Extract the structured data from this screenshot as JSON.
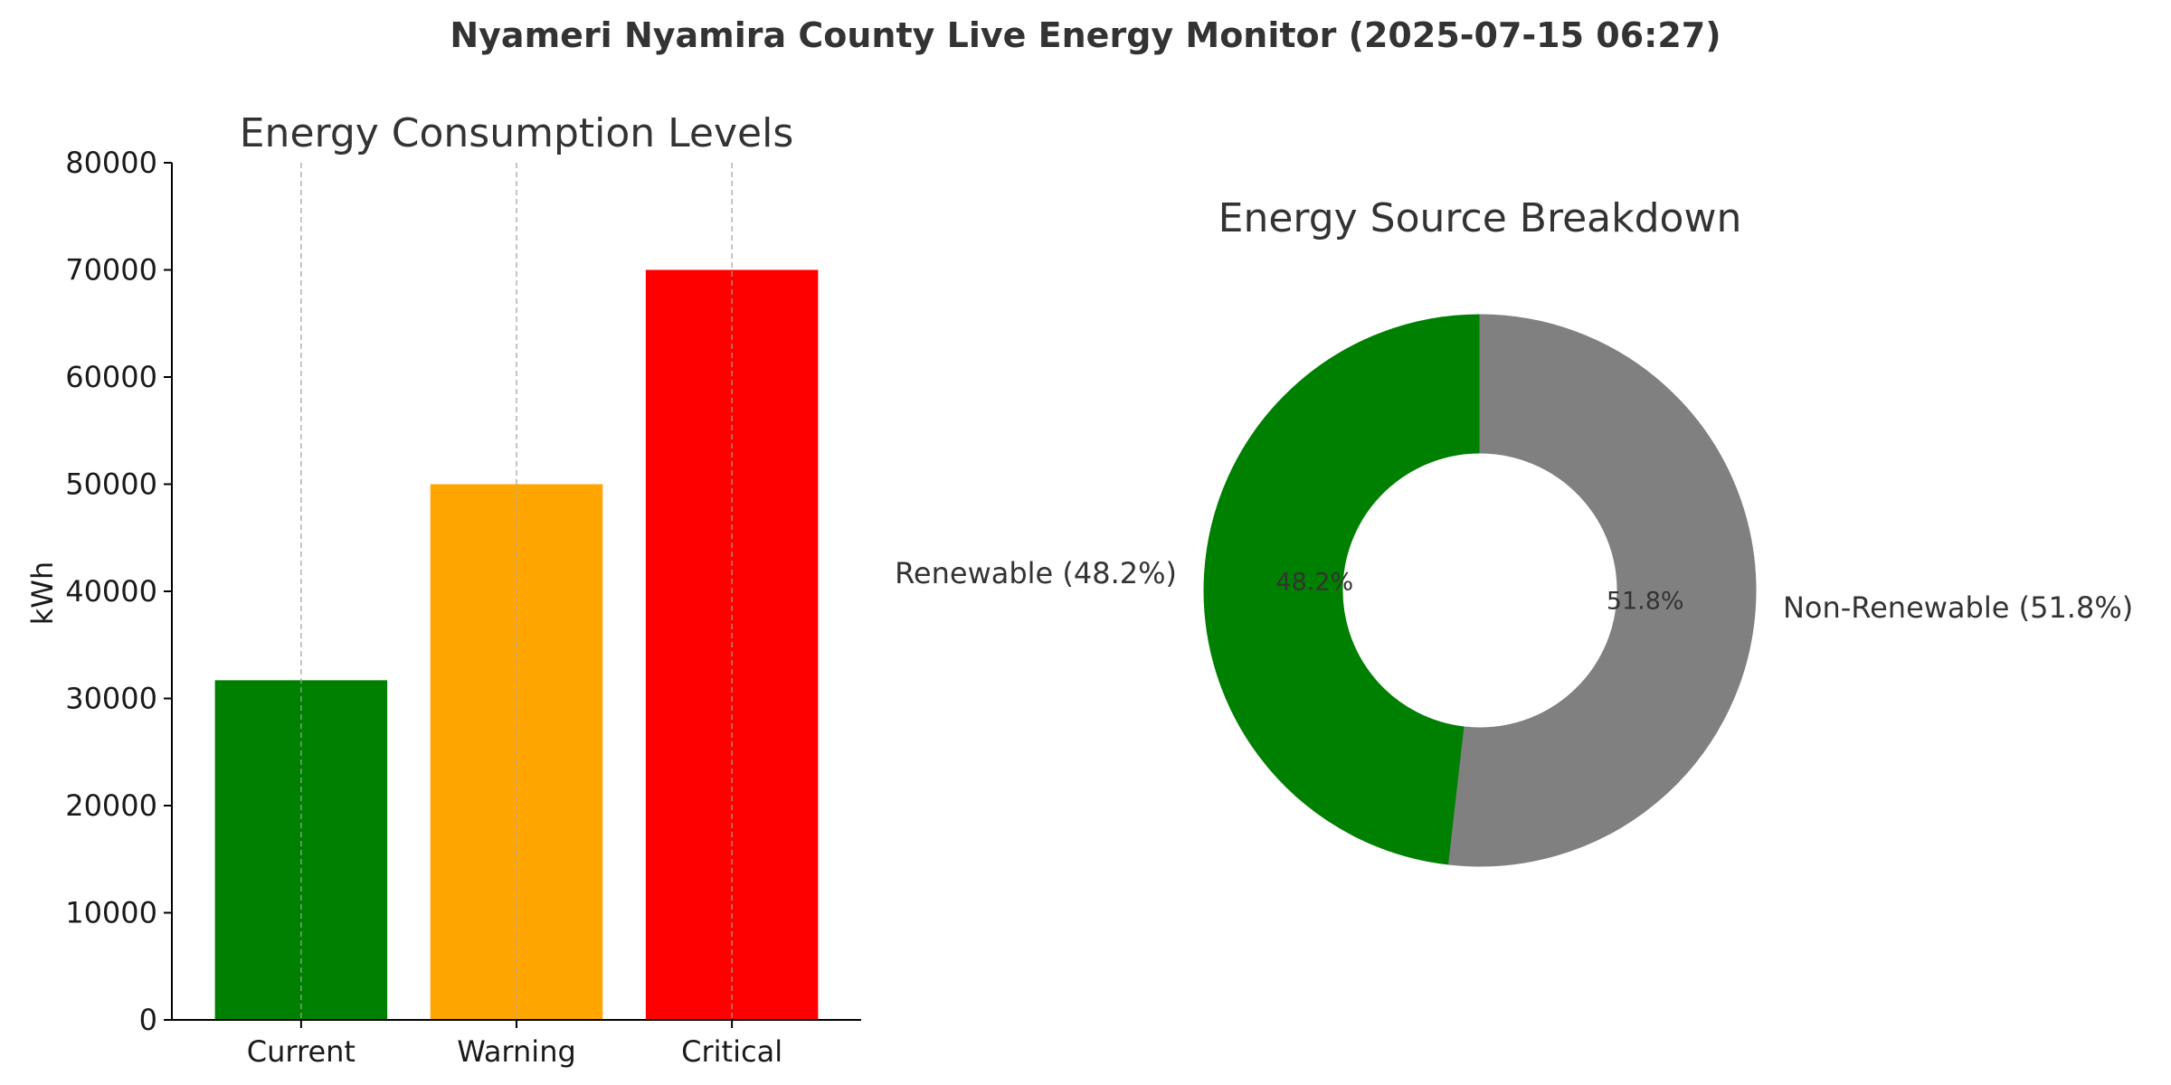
{
  "suptitle": "Nyameri Nyamira County Live Energy Monitor (2025-07-15 06:27)",
  "chart_data": [
    {
      "type": "bar",
      "title": "Energy Consumption Levels",
      "xlabel": "",
      "ylabel": "kWh",
      "categories": [
        "Current",
        "Warning",
        "Critical"
      ],
      "values": [
        31700,
        50000,
        70000
      ],
      "colors": [
        "#008000",
        "#ffa500",
        "#ff0000"
      ],
      "ylim": [
        0,
        80000
      ],
      "yticks": [
        0,
        10000,
        20000,
        30000,
        40000,
        50000,
        60000,
        70000,
        80000
      ],
      "grid": "vertical dashed"
    },
    {
      "type": "pie",
      "style": "donut",
      "title": "Energy Source Breakdown",
      "labels": [
        "Renewable (48.2%)",
        "Non-Renewable (51.8%)"
      ],
      "values": [
        48.2,
        51.8
      ],
      "percent_labels": [
        "48.2%",
        "51.8%"
      ],
      "colors": [
        "#008000",
        "#808080"
      ]
    }
  ]
}
